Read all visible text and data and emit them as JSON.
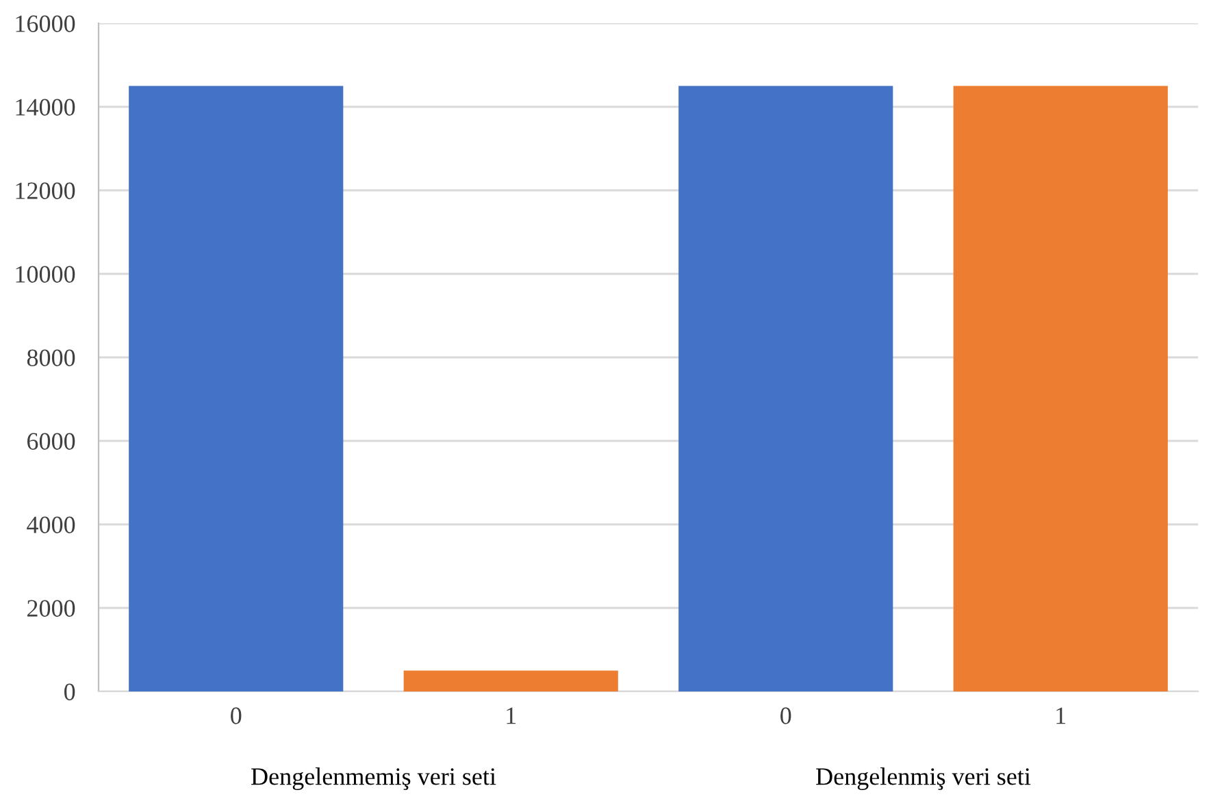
{
  "chart_data": {
    "type": "bar",
    "categories": [
      "0",
      "1",
      "0",
      "1"
    ],
    "values": [
      14500,
      500,
      14500,
      14500
    ],
    "colors": [
      "#4472c4",
      "#ed7d31",
      "#4472c4",
      "#ed7d31"
    ],
    "ylim": [
      0,
      16000
    ],
    "yticks": [
      0,
      2000,
      4000,
      6000,
      8000,
      10000,
      12000,
      14000,
      16000
    ],
    "grid": "y",
    "annotations": [
      "Dengelenmemiş veri seti",
      "Dengelenmiş veri seti"
    ]
  }
}
